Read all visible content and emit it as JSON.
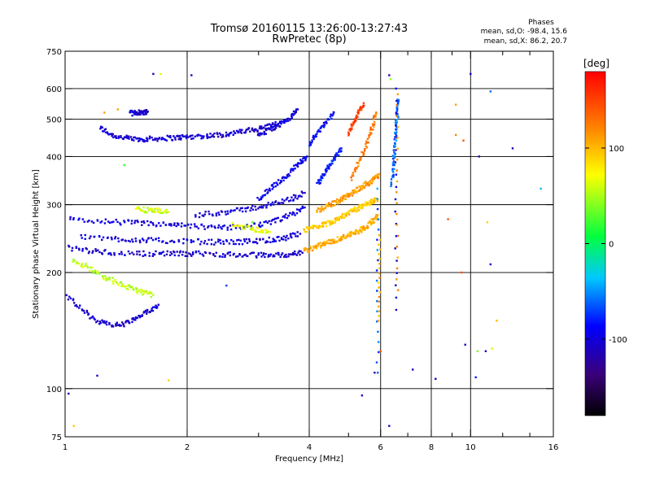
{
  "chart_data": {
    "type": "scatter",
    "title": "Tromsø 20160115 13:26:00-13:27:43",
    "subtitle": "RwPretec (8p)",
    "info": {
      "heading": "Phases",
      "line_o": "mean, sd,O: -98.4, 15.6",
      "line_x": "mean, sd,X: 86.2, 20.7"
    },
    "xlabel": "Frequency [MHz]",
    "ylabel": "Stationary phase Virtual Height [km]",
    "x_scale": "log",
    "y_scale": "log",
    "xlim": [
      1,
      16
    ],
    "ylim": [
      75,
      750
    ],
    "x_ticks": [
      1,
      2,
      4,
      6,
      8,
      10,
      16
    ],
    "x_tick_labels": [
      "1",
      "2",
      "4",
      "6",
      "8",
      "10",
      "16"
    ],
    "x_minor_ticks": [
      3,
      5,
      7,
      9,
      12,
      14
    ],
    "y_ticks": [
      75,
      100,
      200,
      300,
      400,
      500,
      600,
      750
    ],
    "y_tick_labels": [
      "75",
      "100",
      "200",
      "300",
      "400",
      "500",
      "600",
      "750"
    ],
    "x_grid": [
      2,
      4,
      6,
      8,
      10
    ],
    "y_grid": [
      100,
      200,
      300,
      400,
      500,
      600
    ],
    "grid": true,
    "colorbar": {
      "label": "[deg]",
      "range": [
        -180,
        180
      ],
      "ticks": [
        100,
        0,
        -100
      ],
      "tick_labels": [
        "100",
        "0",
        "-100"
      ]
    },
    "traces": [
      {
        "f": [
          1.22,
          1.3,
          1.4,
          1.5,
          1.6,
          1.75,
          1.9,
          2.0,
          2.2,
          2.4,
          2.6,
          2.8,
          3.0,
          3.2,
          3.4
        ],
        "h": [
          475,
          455,
          447,
          443,
          444,
          446,
          448,
          450,
          452,
          455,
          460,
          466,
          472,
          480,
          488
        ],
        "phase": -105
      },
      {
        "f": [
          1.45,
          1.5,
          1.55,
          1.6
        ],
        "h": [
          518,
          520,
          521,
          523
        ],
        "phase": -110
      },
      {
        "f": [
          3.0,
          3.2,
          3.4,
          3.6,
          3.75
        ],
        "h": [
          455,
          470,
          485,
          505,
          530
        ],
        "phase": -100
      },
      {
        "f": [
          1.0,
          1.1,
          1.2,
          1.3,
          1.4,
          1.5,
          1.6,
          1.7
        ],
        "h": [
          175,
          160,
          150,
          146,
          147,
          152,
          158,
          165
        ],
        "phase": -105
      },
      {
        "f": [
          1.05,
          1.15,
          1.25,
          1.35,
          1.45,
          1.55,
          1.65
        ],
        "h": [
          215,
          205,
          195,
          188,
          182,
          178,
          175
        ],
        "phase": 55
      },
      {
        "f": [
          1.0,
          1.15,
          1.3,
          1.5,
          1.7,
          1.9,
          2.1,
          2.4,
          2.7,
          3.0,
          3.3,
          3.6,
          3.85
        ],
        "h": [
          232,
          228,
          225,
          224,
          224,
          224,
          224,
          223,
          222,
          222,
          222,
          223,
          225
        ],
        "phase": -105
      },
      {
        "f": [
          1.1,
          1.3,
          1.5,
          1.7,
          2.0,
          2.3,
          2.6,
          2.9,
          3.2,
          3.5,
          3.8
        ],
        "h": [
          248,
          245,
          243,
          242,
          241,
          240,
          240,
          241,
          243,
          246,
          252
        ],
        "phase": -102
      },
      {
        "f": [
          1.0,
          1.2,
          1.4,
          1.6,
          1.8,
          2.0,
          2.3,
          2.6,
          3.0,
          3.3,
          3.6,
          3.9
        ],
        "h": [
          275,
          272,
          270,
          268,
          266,
          264,
          262,
          262,
          265,
          272,
          282,
          295
        ],
        "phase": -100
      },
      {
        "f": [
          2.1,
          2.4,
          2.7,
          3.0,
          3.3,
          3.6,
          3.9
        ],
        "h": [
          282,
          286,
          290,
          296,
          302,
          310,
          322
        ],
        "phase": -103
      },
      {
        "f": [
          3.0,
          3.2,
          3.4,
          3.6,
          3.8,
          3.95
        ],
        "h": [
          310,
          330,
          345,
          365,
          385,
          400
        ],
        "phase": -95
      },
      {
        "f": [
          2.6,
          2.8,
          3.0,
          3.2
        ],
        "h": [
          265,
          262,
          258,
          255
        ],
        "phase": 65
      },
      {
        "f": [
          1.5,
          1.6,
          1.7,
          1.8
        ],
        "h": [
          292,
          290,
          289,
          287
        ],
        "phase": 60
      },
      {
        "f": [
          3.9,
          4.1,
          4.3,
          4.5,
          4.7,
          4.9,
          5.1,
          5.3,
          5.5,
          5.7,
          5.9
        ],
        "h": [
          228,
          232,
          236,
          240,
          244,
          248,
          252,
          256,
          262,
          270,
          282
        ],
        "phase": 105
      },
      {
        "f": [
          3.9,
          4.1,
          4.3,
          4.5,
          4.7,
          4.9,
          5.1,
          5.3,
          5.5,
          5.7,
          5.9
        ],
        "h": [
          258,
          262,
          266,
          270,
          276,
          282,
          288,
          294,
          300,
          305,
          310
        ],
        "phase": 92
      },
      {
        "f": [
          4.2,
          4.4,
          4.6,
          4.8,
          5.0,
          5.2,
          5.4,
          5.6,
          5.8,
          5.95
        ],
        "h": [
          290,
          296,
          302,
          310,
          318,
          326,
          334,
          342,
          350,
          360
        ],
        "phase": 110
      },
      {
        "f": [
          5.1,
          5.3,
          5.5,
          5.7,
          5.85
        ],
        "h": [
          350,
          385,
          420,
          470,
          520
        ],
        "phase": 125
      },
      {
        "f": [
          5.0,
          5.15,
          5.3,
          5.45
        ],
        "h": [
          460,
          490,
          520,
          550
        ],
        "phase": 150
      },
      {
        "f": [
          4.2,
          4.35,
          4.5,
          4.65,
          4.8
        ],
        "h": [
          340,
          360,
          380,
          400,
          420
        ],
        "phase": -80
      },
      {
        "f": [
          4.0,
          4.2,
          4.4,
          4.6
        ],
        "h": [
          430,
          460,
          490,
          520
        ],
        "phase": -90
      },
      {
        "f": [
          6.4,
          6.45,
          6.5,
          6.55,
          6.6,
          6.65
        ],
        "h": [
          340,
          380,
          420,
          470,
          520,
          560
        ],
        "phase": -60
      }
    ],
    "noise": [
      {
        "f": 1.72,
        "h": 655,
        "phase": 60
      },
      {
        "f": 1.65,
        "h": 655,
        "phase": -110
      },
      {
        "f": 2.05,
        "h": 650,
        "phase": -110
      },
      {
        "f": 1.35,
        "h": 530,
        "phase": 110
      },
      {
        "f": 6.3,
        "h": 650,
        "phase": -120
      },
      {
        "f": 6.35,
        "h": 635,
        "phase": 40
      },
      {
        "f": 10.0,
        "h": 655,
        "phase": -110
      },
      {
        "f": 9.2,
        "h": 545,
        "phase": 110
      },
      {
        "f": 9.2,
        "h": 455,
        "phase": 120
      },
      {
        "f": 9.6,
        "h": 440,
        "phase": 140
      },
      {
        "f": 10.5,
        "h": 400,
        "phase": -110
      },
      {
        "f": 12.7,
        "h": 420,
        "phase": -110
      },
      {
        "f": 11.2,
        "h": 590,
        "phase": -60
      },
      {
        "f": 14.9,
        "h": 330,
        "phase": -40
      },
      {
        "f": 8.8,
        "h": 275,
        "phase": 140
      },
      {
        "f": 11.0,
        "h": 270,
        "phase": 90
      },
      {
        "f": 11.2,
        "h": 210,
        "phase": -110
      },
      {
        "f": 9.5,
        "h": 200,
        "phase": 140
      },
      {
        "f": 9.7,
        "h": 130,
        "phase": -110
      },
      {
        "f": 10.4,
        "h": 125,
        "phase": 40
      },
      {
        "f": 10.9,
        "h": 125,
        "phase": -110
      },
      {
        "f": 11.3,
        "h": 127,
        "phase": 60
      },
      {
        "f": 8.2,
        "h": 106,
        "phase": -110
      },
      {
        "f": 6.3,
        "h": 80,
        "phase": -110
      },
      {
        "f": 7.2,
        "h": 112,
        "phase": -110
      },
      {
        "f": 5.8,
        "h": 110,
        "phase": -120
      },
      {
        "f": 6.0,
        "h": 125,
        "phase": 140
      },
      {
        "f": 5.4,
        "h": 96,
        "phase": -110
      },
      {
        "f": 2.5,
        "h": 185,
        "phase": -70
      },
      {
        "f": 1.8,
        "h": 105,
        "phase": 90
      },
      {
        "f": 1.2,
        "h": 108,
        "phase": -110
      },
      {
        "f": 1.02,
        "h": 97,
        "phase": -110
      },
      {
        "f": 1.05,
        "h": 80,
        "phase": 90
      },
      {
        "f": 1.25,
        "h": 520,
        "phase": 110
      },
      {
        "f": 2.9,
        "h": 270,
        "phase": 30
      },
      {
        "f": 1.4,
        "h": 380,
        "phase": 20
      },
      {
        "f": 11.6,
        "h": 150,
        "phase": 100
      },
      {
        "f": 10.3,
        "h": 107,
        "phase": -80
      }
    ],
    "vertical_streaks": [
      {
        "f": 5.9,
        "h_from": 110,
        "h_to": 330,
        "phase": -60
      },
      {
        "f": 5.95,
        "h_from": 150,
        "h_to": 250,
        "phase": 100
      },
      {
        "f": 6.55,
        "h_from": 160,
        "h_to": 600,
        "phase": -110
      },
      {
        "f": 6.6,
        "h_from": 180,
        "h_to": 580,
        "phase": 120
      }
    ]
  }
}
